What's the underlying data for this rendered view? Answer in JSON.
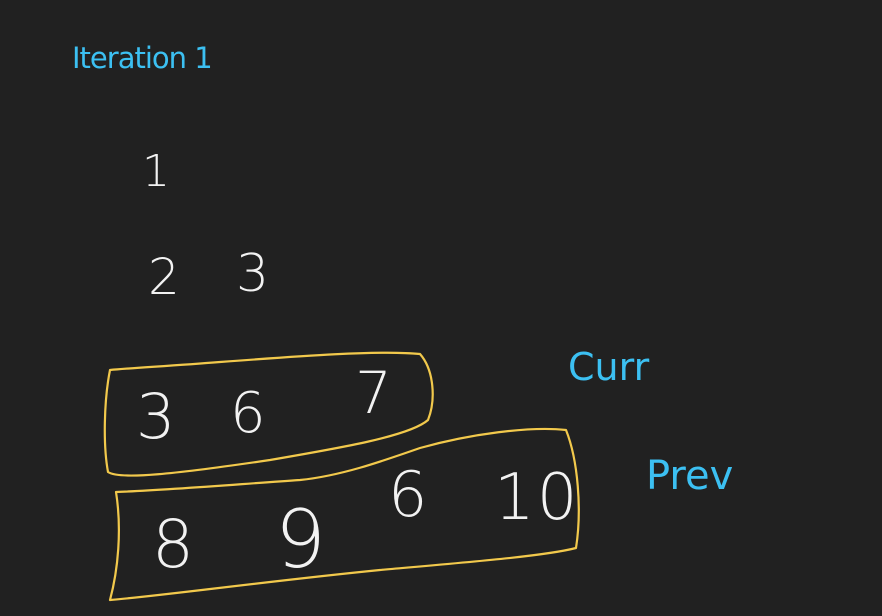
{
  "title": "Iteration 1",
  "rows": [
    [
      "1"
    ],
    [
      "2",
      "3"
    ],
    [
      "3",
      "6",
      "7"
    ],
    [
      "8",
      "9",
      "6",
      "10"
    ]
  ],
  "labels": {
    "curr": "Curr",
    "prev": "Prev"
  },
  "colors": {
    "background": "#212121",
    "label_blue": "#3cc0f2",
    "highlight_yellow": "#f2c94c",
    "digit_white": "#f2f2f2"
  }
}
